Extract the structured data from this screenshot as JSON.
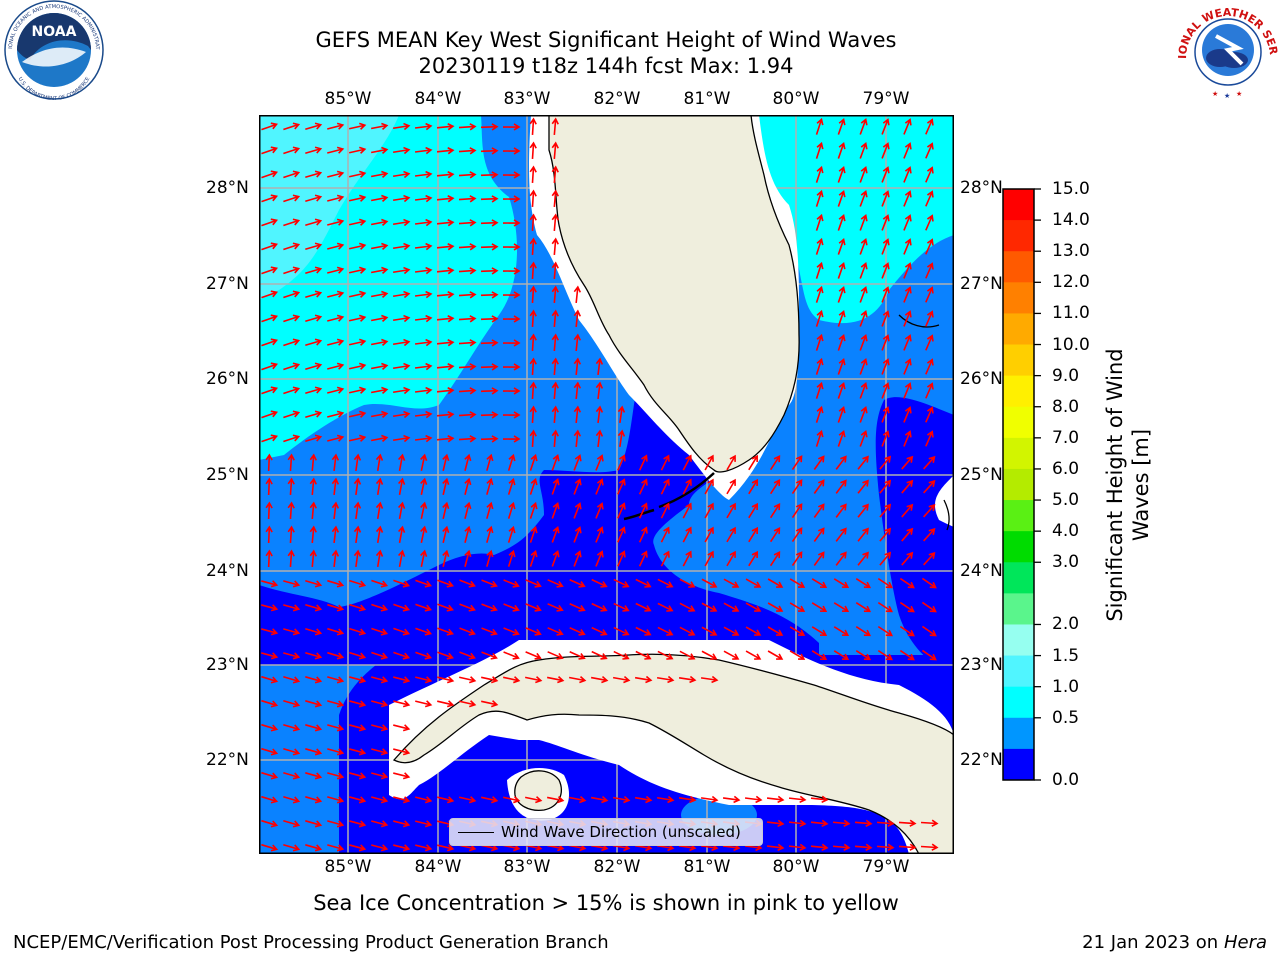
{
  "title": {
    "line1": "GEFS MEAN Key West Significant Height of Wind Waves",
    "line2": "20230119 t18z 144h fcst   Max: 1.94"
  },
  "axes": {
    "longitudes": [
      "85°W",
      "84°W",
      "83°W",
      "82°W",
      "81°W",
      "80°W",
      "79°W"
    ],
    "latitudes": [
      "28°N",
      "27°N",
      "26°N",
      "25°N",
      "24°N",
      "23°N",
      "22°N"
    ]
  },
  "colorbar": {
    "title": "Significant Height of Wind Waves [m]",
    "title_line1": "Significant Height of Wind",
    "title_line2": "Waves [m]",
    "ticks": [
      "15.0",
      "14.0",
      "13.0",
      "12.0",
      "11.0",
      "10.0",
      "9.0",
      "8.0",
      "7.0",
      "6.0",
      "5.0",
      "4.0",
      "3.0",
      "2.0",
      "1.5",
      "1.0",
      "0.5",
      "0.0"
    ],
    "colors_top_to_bottom": [
      "#ff0000",
      "#ff2800",
      "#ff5a00",
      "#ff8000",
      "#ffaa00",
      "#ffcf00",
      "#fff000",
      "#f0ff00",
      "#d2f500",
      "#b4eb00",
      "#5af014",
      "#00dc00",
      "#00e65a",
      "#5af58c",
      "#96fff0",
      "#50f5ff",
      "#00ffff",
      "#0096ff",
      "#0000ff"
    ]
  },
  "map": {
    "field_colors": {
      "level_0_0.5": "#0000ff",
      "level_0.5_1.0": "#0a82ff",
      "level_1.0_1.5": "#00ffff",
      "level_1.5_2.0": "#50f5ff"
    },
    "land_color": "#efeedd",
    "arrow_color": "#ff0000",
    "grid": true
  },
  "legend": {
    "label": "Wind Wave Direction (unscaled)"
  },
  "ice_note": "Sea Ice Concentration > 15% is shown in pink to yellow",
  "footer": {
    "left": "NCEP/EMC/Verification Post Processing Product Generation Branch",
    "right_date": "21 Jan 2023 on ",
    "right_host": "Hera"
  },
  "logos": {
    "left": "NOAA",
    "right": "NATIONAL WEATHER SERVICE"
  }
}
